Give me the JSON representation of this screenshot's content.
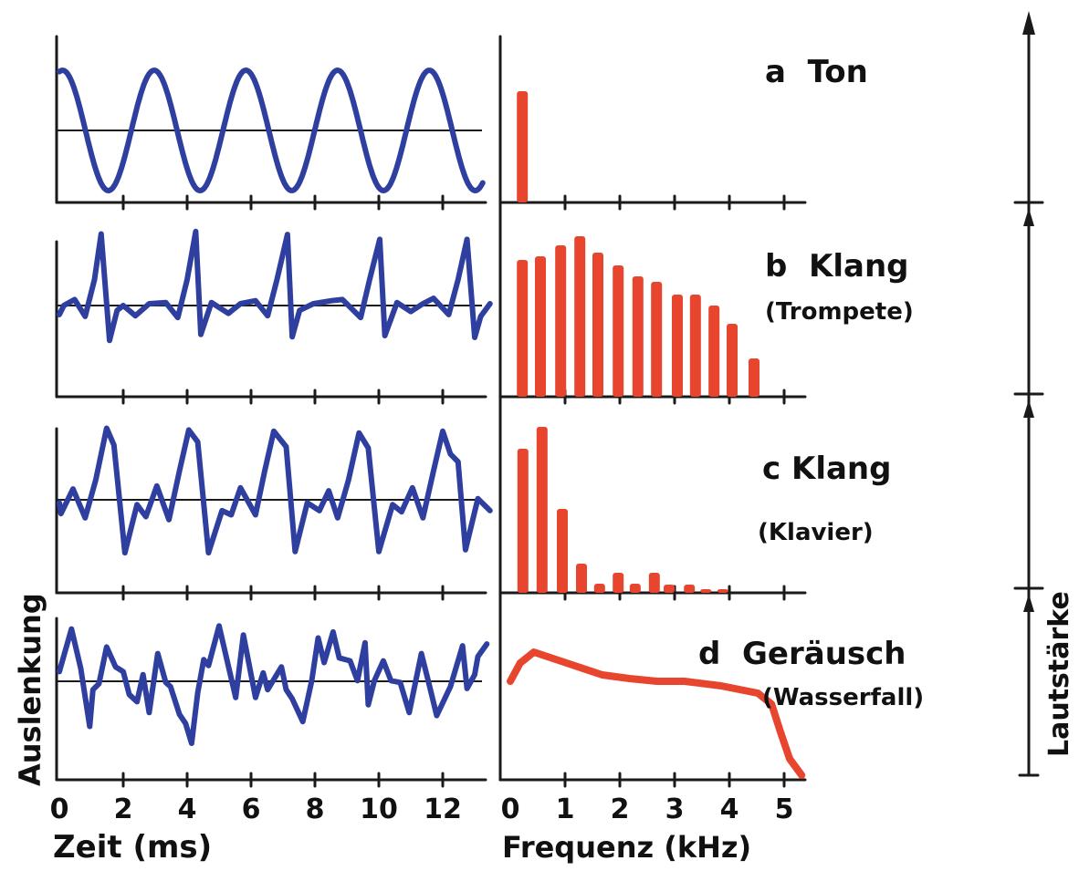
{
  "colors": {
    "waveform": "#2f3f9f",
    "spectrum": "#e8452f",
    "ink": "#1a1a1a"
  },
  "chart_data": {
    "type": "line",
    "panels": [
      {
        "id": "a",
        "title": "a  Ton",
        "subtitle": "",
        "waveform": {
          "shape": "sine",
          "period_ms": 2.87,
          "amplitude": 1.0,
          "first_peak_ms": 0.1,
          "t_end_ms": 13.3
        },
        "spectrum": {
          "type": "bar",
          "freq_khz": [
            0.22
          ],
          "values": [
            61
          ]
        }
      },
      {
        "id": "b",
        "title": "b  Klang",
        "subtitle": "(Trompete)",
        "waveform": {
          "points": [
            [
              0,
              -0.15
            ],
            [
              0.14,
              0
            ],
            [
              0.48,
              0.1
            ],
            [
              0.81,
              -0.18
            ],
            [
              1.1,
              0.43
            ],
            [
              1.31,
              1.19
            ],
            [
              1.57,
              -0.58
            ],
            [
              1.81,
              -0.08
            ],
            [
              2.0,
              0
            ],
            [
              2.38,
              -0.17
            ],
            [
              2.81,
              0.03
            ],
            [
              3.33,
              0.05
            ],
            [
              3.71,
              -0.2
            ],
            [
              4.0,
              0.43
            ],
            [
              4.27,
              1.23
            ],
            [
              4.43,
              -0.48
            ],
            [
              4.76,
              0.05
            ],
            [
              5.29,
              -0.13
            ],
            [
              5.67,
              0.03
            ],
            [
              6.14,
              0.08
            ],
            [
              6.52,
              -0.17
            ],
            [
              6.81,
              0.43
            ],
            [
              7.14,
              1.18
            ],
            [
              7.29,
              -0.52
            ],
            [
              7.52,
              -0.08
            ],
            [
              7.95,
              0.03
            ],
            [
              8.52,
              0.08
            ],
            [
              8.86,
              0.1
            ],
            [
              9.43,
              -0.2
            ],
            [
              9.71,
              0.43
            ],
            [
              10.03,
              1.1
            ],
            [
              10.19,
              -0.5
            ],
            [
              10.57,
              0.05
            ],
            [
              11.0,
              -0.1
            ],
            [
              11.38,
              0.03
            ],
            [
              11.71,
              0.12
            ],
            [
              12.19,
              -0.15
            ],
            [
              12.48,
              0.43
            ],
            [
              12.76,
              1.1
            ],
            [
              13.0,
              -0.53
            ],
            [
              13.19,
              -0.18
            ],
            [
              13.48,
              0.03
            ]
          ]
        },
        "spectrum": {
          "type": "bar",
          "freq_khz": [
            0.22,
            0.55,
            0.92,
            1.27,
            1.6,
            1.97,
            2.33,
            2.67,
            3.05,
            3.38,
            3.72,
            4.05,
            4.45
          ],
          "values": [
            75,
            77,
            83,
            88,
            79,
            72,
            66,
            63,
            56,
            56,
            50,
            40,
            21
          ]
        }
      },
      {
        "id": "c",
        "title": "c Klang",
        "subtitle": "(Klavier)",
        "waveform": {
          "points": [
            [
              0,
              -0.05
            ],
            [
              0.05,
              -0.23
            ],
            [
              0.43,
              0.18
            ],
            [
              0.81,
              -0.3
            ],
            [
              1.14,
              0.33
            ],
            [
              1.48,
              1.19
            ],
            [
              1.71,
              0.91
            ],
            [
              2.05,
              -0.88
            ],
            [
              2.43,
              -0.08
            ],
            [
              2.71,
              -0.28
            ],
            [
              3.05,
              0.23
            ],
            [
              3.43,
              -0.33
            ],
            [
              3.76,
              0.48
            ],
            [
              4.05,
              1.16
            ],
            [
              4.33,
              0.96
            ],
            [
              4.67,
              -0.88
            ],
            [
              5.09,
              -0.18
            ],
            [
              5.38,
              -0.25
            ],
            [
              5.67,
              0.2
            ],
            [
              6.14,
              -0.25
            ],
            [
              6.43,
              0.48
            ],
            [
              6.71,
              1.14
            ],
            [
              7.1,
              0.88
            ],
            [
              7.38,
              -0.86
            ],
            [
              7.76,
              -0.05
            ],
            [
              8.14,
              -0.18
            ],
            [
              8.43,
              0.15
            ],
            [
              8.71,
              -0.3
            ],
            [
              9.05,
              0.33
            ],
            [
              9.38,
              1.11
            ],
            [
              9.67,
              0.86
            ],
            [
              10.0,
              -0.86
            ],
            [
              10.43,
              -0.08
            ],
            [
              10.71,
              -0.2
            ],
            [
              11.05,
              0.2
            ],
            [
              11.38,
              -0.3
            ],
            [
              11.71,
              0.48
            ],
            [
              12.0,
              1.14
            ],
            [
              12.24,
              0.76
            ],
            [
              12.48,
              0.63
            ],
            [
              12.71,
              -0.83
            ],
            [
              13.1,
              0.02
            ],
            [
              13.48,
              -0.18
            ]
          ]
        },
        "spectrum": {
          "type": "bar",
          "freq_khz": [
            0.23,
            0.58,
            0.95,
            1.3,
            1.63,
            1.97,
            2.28,
            2.63,
            2.9,
            3.27,
            3.57,
            3.88
          ],
          "values": [
            79,
            91,
            46,
            16,
            5,
            11,
            5,
            11,
            4.5,
            4.5,
            2,
            2
          ]
        }
      },
      {
        "id": "d",
        "title": "d  Geräusch",
        "subtitle": "(Wasserfall)",
        "waveform": {
          "points": [
            [
              0,
              0.16
            ],
            [
              0.38,
              0.87
            ],
            [
              0.67,
              0.21
            ],
            [
              0.95,
              -0.75
            ],
            [
              1.05,
              -0.14
            ],
            [
              1.24,
              -0.04
            ],
            [
              1.48,
              0.57
            ],
            [
              1.76,
              0.24
            ],
            [
              2.0,
              0.16
            ],
            [
              2.19,
              -0.22
            ],
            [
              2.43,
              -0.34
            ],
            [
              2.62,
              0.11
            ],
            [
              2.81,
              -0.52
            ],
            [
              3.08,
              0.46
            ],
            [
              3.33,
              -0.02
            ],
            [
              3.48,
              -0.09
            ],
            [
              3.76,
              -0.55
            ],
            [
              3.95,
              -0.7
            ],
            [
              4.14,
              -1.03
            ],
            [
              4.33,
              -0.19
            ],
            [
              4.52,
              0.36
            ],
            [
              4.67,
              0.26
            ],
            [
              5.0,
              0.92
            ],
            [
              5.33,
              0.16
            ],
            [
              5.52,
              -0.27
            ],
            [
              5.76,
              0.77
            ],
            [
              6.14,
              -0.27
            ],
            [
              6.38,
              0.14
            ],
            [
              6.52,
              -0.14
            ],
            [
              6.95,
              0.24
            ],
            [
              7.1,
              -0.14
            ],
            [
              7.29,
              -0.29
            ],
            [
              7.62,
              -0.67
            ],
            [
              7.9,
              0.01
            ],
            [
              8.1,
              0.72
            ],
            [
              8.29,
              0.31
            ],
            [
              8.57,
              0.82
            ],
            [
              8.76,
              0.39
            ],
            [
              9.1,
              0.34
            ],
            [
              9.33,
              0.01
            ],
            [
              9.57,
              0.64
            ],
            [
              9.67,
              -0.39
            ],
            [
              9.86,
              0.01
            ],
            [
              10.14,
              0.34
            ],
            [
              10.38,
              0.01
            ],
            [
              10.67,
              -0.02
            ],
            [
              10.95,
              -0.52
            ],
            [
              11.33,
              0.46
            ],
            [
              11.57,
              -0.04
            ],
            [
              11.81,
              -0.57
            ],
            [
              12.24,
              -0.09
            ],
            [
              12.62,
              0.59
            ],
            [
              12.76,
              -0.12
            ],
            [
              13.0,
              0.11
            ],
            [
              13.1,
              0.41
            ],
            [
              13.38,
              0.62
            ]
          ]
        },
        "spectrum": {
          "type": "line",
          "freq_khz": [
            0,
            0.18,
            0.43,
            0.68,
            1.18,
            1.68,
            2.18,
            2.68,
            3.18,
            3.85,
            4.52,
            4.77,
            4.93,
            5.1,
            5.32
          ],
          "values": [
            54,
            64,
            70,
            67.5,
            62.5,
            57.5,
            55.5,
            54,
            54,
            51.5,
            47.5,
            41.5,
            26.5,
            11.5,
            2.5
          ]
        }
      }
    ],
    "time_axis": {
      "label": "Zeit (ms)",
      "ticks": [
        0,
        2,
        4,
        6,
        8,
        10,
        12
      ],
      "range": [
        0,
        13.5
      ]
    },
    "freq_axis": {
      "label": "Frequenz (kHz)",
      "ticks": [
        0,
        1,
        2,
        3,
        4,
        5
      ],
      "range": [
        0,
        5.4
      ]
    },
    "amplitude_label": "Auslenkung",
    "loudness_label": "Lautstärke",
    "grid": false
  }
}
